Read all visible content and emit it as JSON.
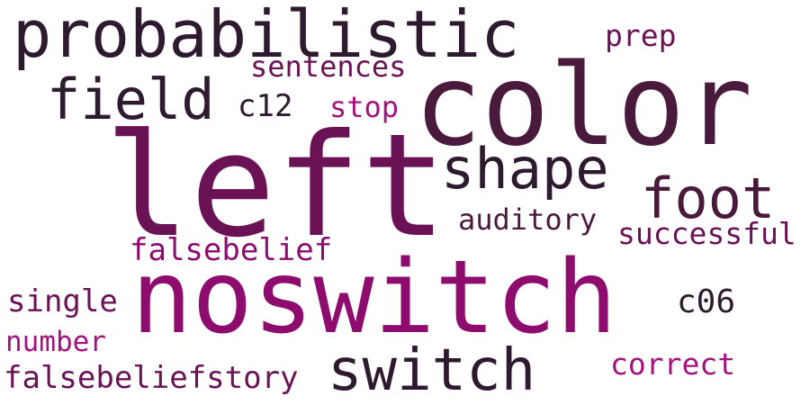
{
  "words": {
    "probabilistic": "probabilistic",
    "color": "color",
    "left": "left",
    "noswitch": "noswitch",
    "field": "field",
    "shape": "shape",
    "foot": "foot",
    "switch": "switch",
    "sentences": "sentences",
    "prep": "prep",
    "c12": "c12",
    "stop": "stop",
    "auditory": "auditory",
    "successful": "successful",
    "falsebelief": "falsebelief",
    "single": "single",
    "c06": "c06",
    "number": "number",
    "correct": "correct",
    "falsebeliefstory": "falsebeliefstory"
  },
  "colors": {
    "dark": "#2e1a2e",
    "plum": "#4a1a3c",
    "wine": "#6b1257",
    "magenta": "#8e0c6e",
    "pink": "#a3127d",
    "background": "#ffffff"
  }
}
